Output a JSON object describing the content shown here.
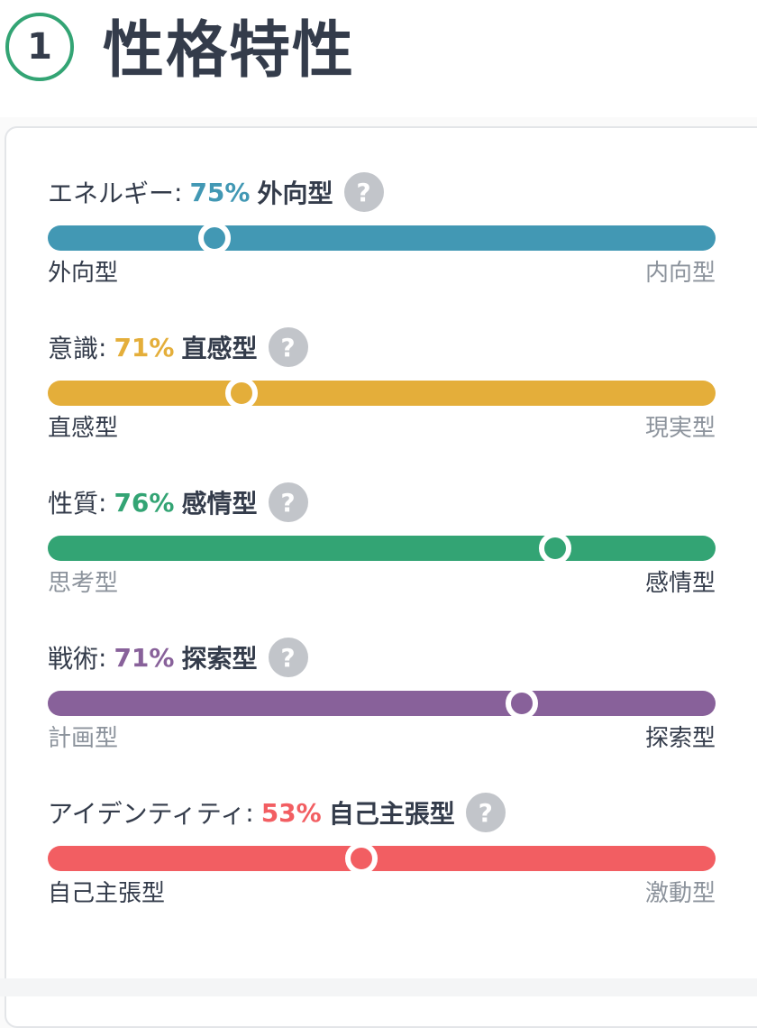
{
  "section": {
    "number": "1",
    "title": "性格特性"
  },
  "traits": [
    {
      "name": "エネルギー",
      "percent": "75%",
      "type": "外向型",
      "left_label": "外向型",
      "right_label": "内向型",
      "active_side": "left",
      "position_fraction": 0.25,
      "color": "#4298b4"
    },
    {
      "name": "意識",
      "percent": "71%",
      "type": "直感型",
      "left_label": "直感型",
      "right_label": "現実型",
      "active_side": "left",
      "position_fraction": 0.29,
      "color": "#e4ae3a"
    },
    {
      "name": "性質",
      "percent": "76%",
      "type": "感情型",
      "left_label": "思考型",
      "right_label": "感情型",
      "active_side": "right",
      "position_fraction": 0.76,
      "color": "#33a474"
    },
    {
      "name": "戦術",
      "percent": "71%",
      "type": "探索型",
      "left_label": "計画型",
      "right_label": "探索型",
      "active_side": "right",
      "position_fraction": 0.71,
      "color": "#88619a"
    },
    {
      "name": "アイデンティティ",
      "percent": "53%",
      "type": "自己主張型",
      "left_label": "自己主張型",
      "right_label": "激動型",
      "active_side": "left",
      "position_fraction": 0.47,
      "color": "#f25e62"
    }
  ],
  "icons": {
    "help": "?"
  }
}
